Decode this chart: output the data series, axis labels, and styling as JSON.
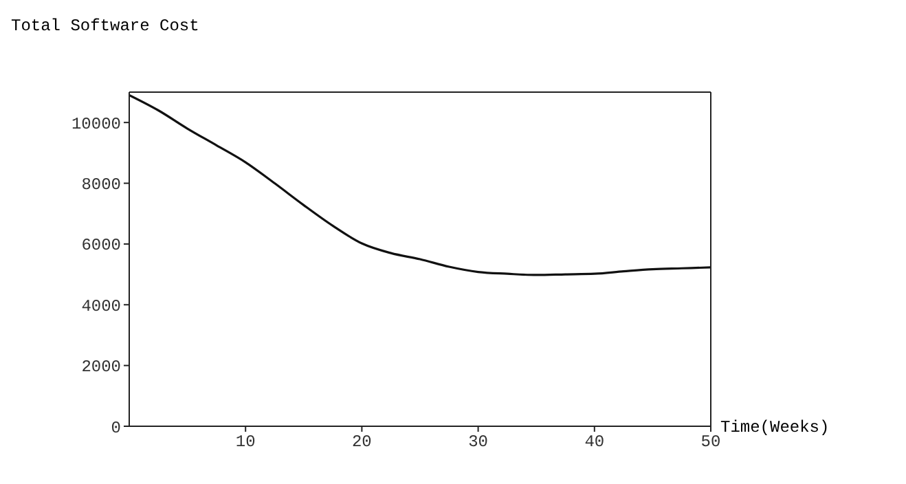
{
  "chart_data": {
    "type": "line",
    "ylabel": "Total Software Cost",
    "xlabel": "Time(Weeks)",
    "x": [
      0,
      2.5,
      5,
      7.5,
      10,
      12.5,
      15,
      17.5,
      20,
      22.5,
      25,
      27.5,
      30,
      32.5,
      35,
      37.5,
      40,
      42.5,
      45,
      47.5,
      50
    ],
    "series": [
      {
        "color": "#111111",
        "values": [
          10900,
          10400,
          9800,
          9250,
          8690,
          8000,
          7280,
          6600,
          6020,
          5700,
          5500,
          5250,
          5080,
          5020,
          4980,
          5000,
          5020,
          5100,
          5170,
          5200,
          5230
        ]
      }
    ],
    "xlim": [
      0,
      50
    ],
    "xticks": [
      10,
      20,
      30,
      40,
      50
    ],
    "ylim": [
      0,
      11000
    ],
    "yticks": [
      0,
      2000,
      4000,
      6000,
      8000,
      10000
    ],
    "grid": false,
    "marker": "none",
    "line_style": "solid"
  }
}
